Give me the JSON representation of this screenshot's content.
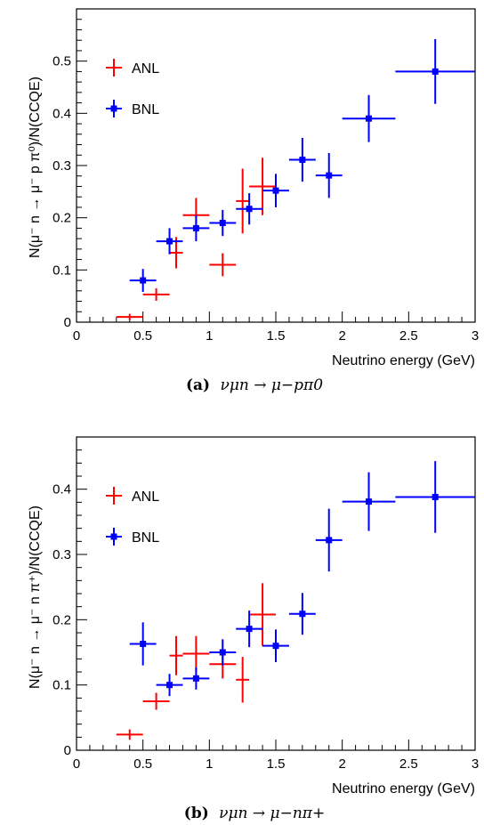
{
  "chart_data": [
    {
      "type": "scatter",
      "panel_label": "(a)",
      "caption": "ν_μ n → μ⁻ p π⁰",
      "caption_math": "νμn → μ−pπ0",
      "xlabel": "Neutrino energy (GeV)",
      "ylabel": "N(μ⁻ n → μ⁻ p π⁰)/N(CCQE)",
      "xlim": [
        0,
        3
      ],
      "ylim": [
        0,
        0.6
      ],
      "x_ticks": [
        0,
        0.5,
        1,
        1.5,
        2,
        2.5,
        3
      ],
      "x_tick_labels": [
        "0",
        "0.5",
        "1",
        "1.5",
        "2",
        "2.5",
        "3"
      ],
      "y_ticks": [
        0,
        0.1,
        0.2,
        0.3,
        0.4,
        0.5
      ],
      "y_tick_labels": [
        "0",
        "0.1",
        "0.2",
        "0.3",
        "0.4",
        "0.5"
      ],
      "legend_position": "top-left",
      "series": [
        {
          "name": "ANL",
          "color": "#ff0000",
          "marker": "none",
          "points": [
            {
              "x": 0.4,
              "y": 0.01,
              "xerr": 0.1,
              "yerr": 0.006
            },
            {
              "x": 0.6,
              "y": 0.053,
              "xerr": 0.1,
              "yerr": 0.012
            },
            {
              "x": 0.75,
              "y": 0.133,
              "xerr": 0.05,
              "yerr": 0.03
            },
            {
              "x": 0.9,
              "y": 0.205,
              "xerr": 0.1,
              "yerr": 0.033
            },
            {
              "x": 1.1,
              "y": 0.11,
              "xerr": 0.1,
              "yerr": 0.022
            },
            {
              "x": 1.25,
              "y": 0.232,
              "xerr": 0.05,
              "yerr": 0.062
            },
            {
              "x": 1.4,
              "y": 0.26,
              "xerr": 0.1,
              "yerr": 0.055
            }
          ]
        },
        {
          "name": "BNL",
          "color": "#0000ff",
          "marker": "square",
          "points": [
            {
              "x": 0.5,
              "y": 0.08,
              "xerr": 0.1,
              "yerr": 0.022
            },
            {
              "x": 0.7,
              "y": 0.155,
              "xerr": 0.1,
              "yerr": 0.025
            },
            {
              "x": 0.9,
              "y": 0.18,
              "xerr": 0.1,
              "yerr": 0.025
            },
            {
              "x": 1.1,
              "y": 0.19,
              "xerr": 0.1,
              "yerr": 0.025
            },
            {
              "x": 1.3,
              "y": 0.217,
              "xerr": 0.1,
              "yerr": 0.03
            },
            {
              "x": 1.5,
              "y": 0.252,
              "xerr": 0.1,
              "yerr": 0.032
            },
            {
              "x": 1.7,
              "y": 0.311,
              "xerr": 0.1,
              "yerr": 0.042
            },
            {
              "x": 1.9,
              "y": 0.281,
              "xerr": 0.1,
              "yerr": 0.043
            },
            {
              "x": 2.2,
              "y": 0.39,
              "xerr": 0.2,
              "yerr": 0.045
            },
            {
              "x": 2.7,
              "y": 0.48,
              "xerr": 0.3,
              "yerr": 0.062
            }
          ]
        }
      ]
    },
    {
      "type": "scatter",
      "panel_label": "(b)",
      "caption": "ν_μ n → μ⁻ n π⁺",
      "caption_math": "νμn → μ−nπ+",
      "xlabel": "Neutrino energy (GeV)",
      "ylabel": "N(μ⁻ n → μ⁻ n π⁺)/N(CCQE)",
      "xlim": [
        0,
        3
      ],
      "ylim": [
        0,
        0.48
      ],
      "x_ticks": [
        0,
        0.5,
        1,
        1.5,
        2,
        2.5,
        3
      ],
      "x_tick_labels": [
        "0",
        "0.5",
        "1",
        "1.5",
        "2",
        "2.5",
        "3"
      ],
      "y_ticks": [
        0,
        0.1,
        0.2,
        0.3,
        0.4
      ],
      "y_tick_labels": [
        "0",
        "0.1",
        "0.2",
        "0.3",
        "0.4"
      ],
      "legend_position": "top-left",
      "series": [
        {
          "name": "ANL",
          "color": "#ff0000",
          "marker": "none",
          "points": [
            {
              "x": 0.4,
              "y": 0.024,
              "xerr": 0.1,
              "yerr": 0.008
            },
            {
              "x": 0.6,
              "y": 0.075,
              "xerr": 0.1,
              "yerr": 0.013
            },
            {
              "x": 0.75,
              "y": 0.145,
              "xerr": 0.05,
              "yerr": 0.03
            },
            {
              "x": 0.9,
              "y": 0.148,
              "xerr": 0.1,
              "yerr": 0.027
            },
            {
              "x": 1.1,
              "y": 0.132,
              "xerr": 0.1,
              "yerr": 0.022
            },
            {
              "x": 1.25,
              "y": 0.108,
              "xerr": 0.05,
              "yerr": 0.035
            },
            {
              "x": 1.4,
              "y": 0.208,
              "xerr": 0.1,
              "yerr": 0.048
            }
          ]
        },
        {
          "name": "BNL",
          "color": "#0000ff",
          "marker": "square",
          "points": [
            {
              "x": 0.5,
              "y": 0.163,
              "xerr": 0.1,
              "yerr": 0.033
            },
            {
              "x": 0.7,
              "y": 0.1,
              "xerr": 0.1,
              "yerr": 0.017
            },
            {
              "x": 0.9,
              "y": 0.11,
              "xerr": 0.1,
              "yerr": 0.017
            },
            {
              "x": 1.1,
              "y": 0.15,
              "xerr": 0.1,
              "yerr": 0.02
            },
            {
              "x": 1.3,
              "y": 0.186,
              "xerr": 0.1,
              "yerr": 0.028
            },
            {
              "x": 1.5,
              "y": 0.16,
              "xerr": 0.1,
              "yerr": 0.025
            },
            {
              "x": 1.7,
              "y": 0.209,
              "xerr": 0.1,
              "yerr": 0.032
            },
            {
              "x": 1.9,
              "y": 0.322,
              "xerr": 0.1,
              "yerr": 0.048
            },
            {
              "x": 2.2,
              "y": 0.381,
              "xerr": 0.2,
              "yerr": 0.045
            },
            {
              "x": 2.7,
              "y": 0.388,
              "xerr": 0.3,
              "yerr": 0.055
            }
          ]
        }
      ]
    }
  ]
}
